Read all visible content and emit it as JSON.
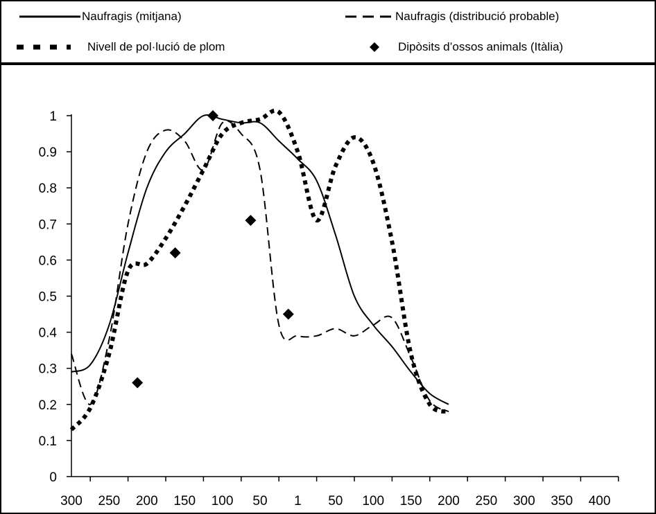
{
  "chart_data": {
    "type": "line",
    "x_ticks": [
      "300",
      "250",
      "200",
      "150",
      "100",
      "50",
      "1",
      "50",
      "100",
      "150",
      "200",
      "250",
      "300",
      "350",
      "400"
    ],
    "y_ticks": [
      "0",
      "0.1",
      "0.2",
      "0.3",
      "0.4",
      "0.5",
      "0.6",
      "0.7",
      "0.8",
      "0.9",
      "1"
    ],
    "ylim": [
      0,
      1
    ],
    "grid": false,
    "legend_position": "top",
    "series": [
      {
        "name": "Naufragis (mitjana)",
        "style": "solid",
        "color": "#000000",
        "points": [
          [
            0,
            0.29
          ],
          [
            0.5,
            0.31
          ],
          [
            1,
            0.42
          ],
          [
            1.5,
            0.62
          ],
          [
            2,
            0.8
          ],
          [
            2.5,
            0.9
          ],
          [
            3,
            0.95
          ],
          [
            3.5,
            1.0
          ],
          [
            4,
            0.99
          ],
          [
            4.5,
            0.98
          ],
          [
            5,
            0.98
          ],
          [
            5.5,
            0.93
          ],
          [
            6,
            0.88
          ],
          [
            6.5,
            0.82
          ],
          [
            7,
            0.67
          ],
          [
            7.5,
            0.5
          ],
          [
            8,
            0.42
          ],
          [
            8.5,
            0.36
          ],
          [
            9,
            0.29
          ],
          [
            9.5,
            0.23
          ],
          [
            10,
            0.2
          ]
        ]
      },
      {
        "name": "Naufragis (distribució probable)",
        "style": "dashed",
        "color": "#000000",
        "points": [
          [
            0,
            0.34
          ],
          [
            0.5,
            0.2
          ],
          [
            1,
            0.38
          ],
          [
            1.5,
            0.7
          ],
          [
            2,
            0.9
          ],
          [
            2.5,
            0.96
          ],
          [
            3,
            0.93
          ],
          [
            3.5,
            0.85
          ],
          [
            4,
            0.98
          ],
          [
            4.5,
            0.95
          ],
          [
            5,
            0.85
          ],
          [
            5.5,
            0.42
          ],
          [
            6,
            0.39
          ],
          [
            6.5,
            0.39
          ],
          [
            7,
            0.41
          ],
          [
            7.5,
            0.39
          ],
          [
            8,
            0.42
          ],
          [
            8.5,
            0.44
          ],
          [
            9,
            0.33
          ],
          [
            9.5,
            0.21
          ],
          [
            10,
            0.18
          ]
        ]
      },
      {
        "name": "Nivell de pol·lució de plom",
        "style": "dotted-thick",
        "color": "#000000",
        "points": [
          [
            0,
            0.13
          ],
          [
            0.5,
            0.19
          ],
          [
            1,
            0.34
          ],
          [
            1.5,
            0.57
          ],
          [
            2,
            0.59
          ],
          [
            2.5,
            0.66
          ],
          [
            3,
            0.75
          ],
          [
            3.5,
            0.85
          ],
          [
            4,
            0.95
          ],
          [
            4.5,
            0.98
          ],
          [
            5,
            0.99
          ],
          [
            5.5,
            1.01
          ],
          [
            6,
            0.9
          ],
          [
            6.5,
            0.71
          ],
          [
            7,
            0.86
          ],
          [
            7.5,
            0.94
          ],
          [
            8,
            0.87
          ],
          [
            8.5,
            0.65
          ],
          [
            9,
            0.34
          ],
          [
            9.5,
            0.2
          ],
          [
            10,
            0.18
          ]
        ]
      },
      {
        "name": "Dipòsits d’ossos animals (Itàlia)",
        "style": "markers-diamond",
        "color": "#000000",
        "points": [
          [
            1.75,
            0.26
          ],
          [
            2.75,
            0.62
          ],
          [
            3.75,
            1.0
          ],
          [
            4.75,
            0.71
          ],
          [
            5.75,
            0.45
          ]
        ]
      }
    ]
  }
}
